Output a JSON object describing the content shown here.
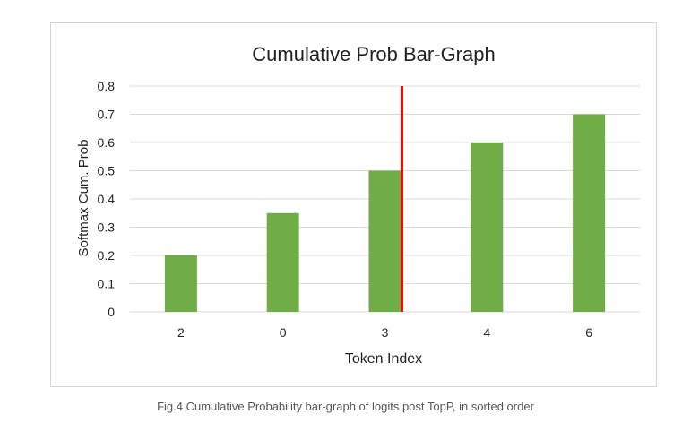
{
  "chart_data": {
    "type": "bar",
    "title": "Cumulative Prob Bar-Graph",
    "xlabel": "Token Index",
    "ylabel": "Softmax Cum. Prob",
    "categories": [
      "2",
      "0",
      "3",
      "4",
      "6"
    ],
    "values": [
      0.2,
      0.35,
      0.5,
      0.6,
      0.7
    ],
    "ylim": [
      0,
      0.8
    ],
    "yticks": [
      "0",
      "0.1",
      "0.2",
      "0.3",
      "0.4",
      "0.5",
      "0.6",
      "0.7",
      "0.8"
    ],
    "grid": true,
    "legend": "none",
    "bar_color": "#70ad47",
    "cutoff_line": {
      "after_category": "3",
      "color": "#ff0000"
    }
  },
  "caption": "Fig.4 Cumulative Probability bar-graph of logits post TopP, in sorted order"
}
